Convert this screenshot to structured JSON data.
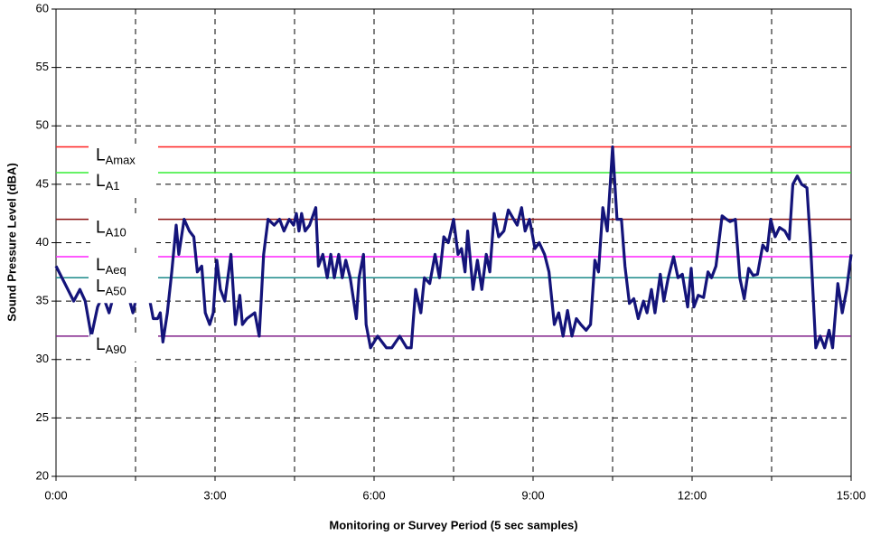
{
  "chart_data": {
    "type": "line",
    "ylabel": "Sound Pressure Level (dBA)",
    "xlabel": "Monitoring or Survey Period (5 sec samples)",
    "xlim": [
      0,
      900
    ],
    "ylim": [
      20,
      60
    ],
    "xticks": [
      {
        "value": 0,
        "label": "0:00"
      },
      {
        "value": 180,
        "label": "3:00"
      },
      {
        "value": 360,
        "label": "6:00"
      },
      {
        "value": 540,
        "label": "9:00"
      },
      {
        "value": 720,
        "label": "12:00"
      },
      {
        "value": 900,
        "label": "15:00"
      }
    ],
    "x_minor_ticks": [
      90,
      270,
      450,
      630,
      810
    ],
    "yticks": [
      20,
      25,
      30,
      35,
      40,
      45,
      50,
      55,
      60
    ],
    "grid": true,
    "series": [
      {
        "color": "#14147a",
        "x": [
          0,
          10,
          20,
          27,
          33,
          40,
          47,
          53,
          60,
          67,
          73,
          80,
          87,
          93,
          100,
          105,
          110,
          115,
          118,
          121,
          126,
          131,
          136,
          139,
          145,
          151,
          156,
          160,
          165,
          169,
          174,
          178,
          182,
          186,
          191,
          198,
          203,
          208,
          211,
          216,
          225,
          230,
          235,
          240,
          247,
          253,
          258,
          264,
          269,
          272,
          275,
          278,
          282,
          287,
          294,
          297,
          302,
          307,
          311,
          315,
          320,
          324,
          328,
          333,
          340,
          343,
          348,
          351,
          356,
          364,
          374,
          380,
          389,
          397,
          402,
          407,
          413,
          417,
          423,
          429,
          434,
          439,
          444,
          450,
          455,
          459,
          463,
          466,
          472,
          477,
          482,
          487,
          491,
          496,
          501,
          507,
          512,
          518,
          522,
          527,
          531,
          536,
          542,
          547,
          553,
          558,
          564,
          569,
          574,
          579,
          584,
          589,
          594,
          600,
          605,
          610,
          614,
          619,
          624,
          630,
          635,
          640,
          644,
          649,
          654,
          659,
          665,
          669,
          674,
          678,
          684,
          688,
          693,
          699,
          704,
          709,
          715,
          719,
          722,
          727,
          733,
          738,
          742,
          747,
          754,
          759,
          763,
          769,
          774,
          779,
          784,
          789,
          794,
          800,
          805,
          809,
          814,
          819,
          825,
          830,
          834,
          839,
          844,
          850,
          854,
          860,
          865,
          870,
          875,
          879,
          885,
          890,
          895,
          900
        ],
        "values": [
          38,
          36.5,
          35,
          36,
          35,
          32,
          34.5,
          35.5,
          34,
          36,
          35,
          36,
          34,
          36,
          35,
          35.5,
          33.5,
          33.5,
          34,
          31.5,
          34,
          37.5,
          41.5,
          39,
          42,
          41,
          40.5,
          37.5,
          38,
          34,
          33,
          34,
          38.5,
          36,
          35,
          39,
          33,
          35.5,
          33,
          33.5,
          34,
          32,
          39,
          42,
          41.5,
          42,
          41,
          42,
          41.5,
          42.5,
          41,
          42.5,
          41,
          41.5,
          43,
          38,
          39,
          37,
          39,
          37,
          39,
          37,
          38.5,
          37,
          33.5,
          37,
          39,
          33,
          31,
          32,
          31,
          31,
          32,
          31,
          31,
          36,
          34,
          37,
          36.5,
          39,
          37,
          40.5,
          40,
          42,
          39,
          39.5,
          37.5,
          41,
          36,
          38.5,
          36,
          39,
          37.5,
          42.5,
          40.5,
          41,
          42.8,
          42,
          41.5,
          43,
          41,
          42,
          39.5,
          40,
          39,
          37.5,
          33,
          34,
          32,
          34.2,
          32,
          33.5,
          33,
          32.5,
          33,
          38.5,
          37.5,
          43,
          41,
          48.2,
          42,
          42,
          38,
          34.8,
          35.2,
          33.5,
          35,
          34,
          36,
          34,
          37.3,
          35,
          37,
          38.8,
          37,
          37.3,
          34.5,
          37.8,
          34.5,
          35.5,
          35.3,
          37.5,
          37,
          38,
          42.3,
          42,
          41.8,
          42,
          37,
          35.2,
          37.8,
          37.2,
          37.3,
          39.8,
          39.3,
          42,
          40.5,
          41.3,
          41,
          40.3,
          45,
          45.7,
          45,
          44.7,
          40,
          31,
          32,
          31,
          32.5,
          31,
          36.5,
          34,
          36,
          39
        ]
      }
    ],
    "reference_lines": [
      {
        "label": "L",
        "subscript": "Amax",
        "value": 48.2,
        "color": "#ff2020"
      },
      {
        "label": "L",
        "subscript": "A1",
        "value": 46,
        "color": "#33ee33"
      },
      {
        "label": "L",
        "subscript": "A10",
        "value": 42,
        "color": "#8b1010"
      },
      {
        "label": "L",
        "subscript": "Aeq",
        "value": 38.8,
        "color": "#ff22ff"
      },
      {
        "label": "L",
        "subscript": "A50",
        "value": 37,
        "color": "#1a8a8a"
      },
      {
        "label": "L",
        "subscript": "A90",
        "value": 32,
        "color": "#80208a"
      }
    ]
  }
}
